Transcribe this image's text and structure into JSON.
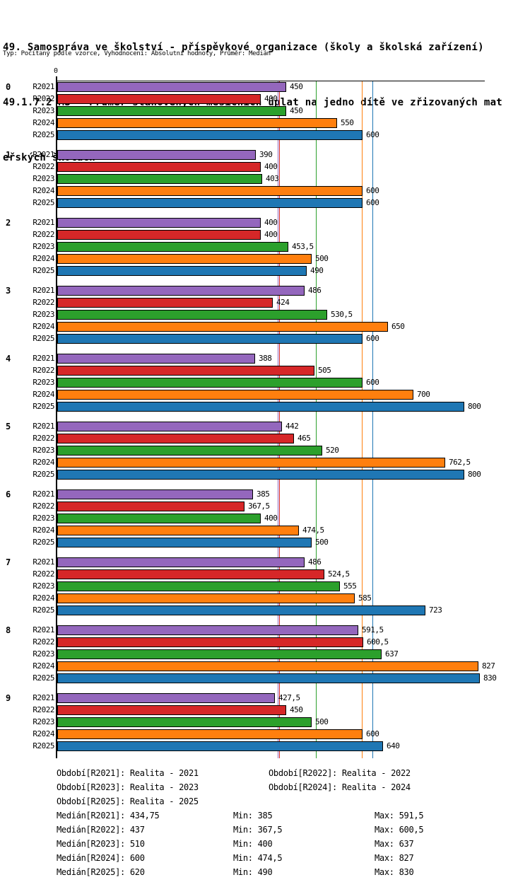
{
  "header": {
    "title_line1": "49. Samospráva ve školství - příspěvkové organizace (školy a školská zařízení)",
    "title_line2": "49.1.7.2 MŠ - Průměr stanovených měsíčních úplat na jedno dítě ve zřizovaných mat",
    "title_line3": "eřských školách",
    "meta": "Typ: Počítaný podle vzorce, Vyhodnocení: Absolutní hodnoty, Průměr: Medián"
  },
  "chart_data": {
    "type": "bar",
    "orientation": "horizontal",
    "title": "49.1.7.2 MŠ - Průměr stanovených měsíčních úplat na jedno dítě ve zřizovaných mateřských školách",
    "xlabel": "",
    "ylabel": "",
    "axis": {
      "origin_label": "0",
      "min": 0,
      "max": 830,
      "grid": false
    },
    "legend_position": "none",
    "series": [
      {
        "name": "R2021",
        "color": "#9467BD"
      },
      {
        "name": "R2022",
        "color": "#D62728"
      },
      {
        "name": "R2023",
        "color": "#2CA02C"
      },
      {
        "name": "R2024",
        "color": "#FF7F0E"
      },
      {
        "name": "R2025",
        "color": "#1F77B4"
      }
    ],
    "categories": [
      "0",
      "1",
      "2",
      "3",
      "4",
      "5",
      "6",
      "7",
      "8",
      "9"
    ],
    "groups": [
      {
        "label": "0",
        "values": [
          450,
          400,
          450,
          550,
          600
        ],
        "labels": [
          "450",
          "400",
          "450",
          "550",
          "600"
        ]
      },
      {
        "label": "1",
        "values": [
          390,
          400,
          403,
          600,
          600
        ],
        "labels": [
          "390",
          "400",
          "403",
          "600",
          "600"
        ]
      },
      {
        "label": "2",
        "values": [
          400,
          400,
          453.5,
          500,
          490
        ],
        "labels": [
          "400",
          "400",
          "453,5",
          "500",
          "490"
        ]
      },
      {
        "label": "3",
        "values": [
          486,
          424,
          530.5,
          650,
          600
        ],
        "labels": [
          "486",
          "424",
          "530,5",
          "650",
          "600"
        ]
      },
      {
        "label": "4",
        "values": [
          388,
          505,
          600,
          700,
          800
        ],
        "labels": [
          "388",
          "505",
          "600",
          "700",
          "800"
        ]
      },
      {
        "label": "5",
        "values": [
          442,
          465,
          520,
          762.5,
          800
        ],
        "labels": [
          "442",
          "465",
          "520",
          "762,5",
          "800"
        ]
      },
      {
        "label": "6",
        "values": [
          385,
          367.5,
          400,
          474.5,
          500
        ],
        "labels": [
          "385",
          "367,5",
          "400",
          "474,5",
          "500"
        ]
      },
      {
        "label": "7",
        "values": [
          486,
          524.5,
          555,
          585,
          723
        ],
        "labels": [
          "486",
          "524,5",
          "555",
          "585",
          "723"
        ]
      },
      {
        "label": "8",
        "values": [
          591.5,
          600.5,
          637,
          827,
          830
        ],
        "labels": [
          "591,5",
          "600,5",
          "637",
          "827",
          "830"
        ]
      },
      {
        "label": "9",
        "values": [
          427.5,
          450,
          500,
          600,
          640
        ],
        "labels": [
          "427,5",
          "450",
          "500",
          "600",
          "640"
        ]
      }
    ],
    "median_lines": [
      {
        "series": "R2021",
        "value": 434.75,
        "color": "#9467BD"
      },
      {
        "series": "R2022",
        "value": 437,
        "color": "#D62728"
      },
      {
        "series": "R2023",
        "value": 510,
        "color": "#2CA02C"
      },
      {
        "series": "R2024",
        "value": 600,
        "color": "#FF7F0E"
      },
      {
        "series": "R2025",
        "value": 620,
        "color": "#1F77B4"
      }
    ]
  },
  "footer": {
    "periods": [
      {
        "col1": "Období[R2021]: Realita - 2021",
        "col2": "Období[R2022]: Realita - 2022"
      },
      {
        "col1": "Období[R2023]: Realita - 2023",
        "col2": "Období[R2024]: Realita - 2024"
      },
      {
        "col1": "Období[R2025]: Realita - 2025",
        "col2": ""
      }
    ],
    "stats": [
      {
        "median": "Medián[R2021]: 434,75",
        "min": "Min: 385",
        "max": "Max: 591,5"
      },
      {
        "median": "Medián[R2022]: 437",
        "min": "Min: 367,5",
        "max": "Max: 600,5"
      },
      {
        "median": "Medián[R2023]: 510",
        "min": "Min: 400",
        "max": "Max: 637"
      },
      {
        "median": "Medián[R2024]: 600",
        "min": "Min: 474,5",
        "max": "Max: 827"
      },
      {
        "median": "Medián[R2025]: 620",
        "min": "Min: 490",
        "max": "Max: 830"
      }
    ]
  }
}
